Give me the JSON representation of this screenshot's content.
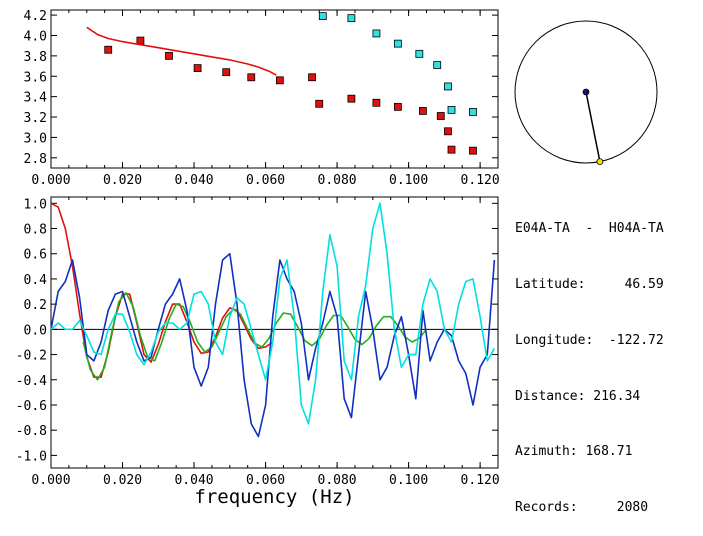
{
  "info": {
    "header": "E04A-TA  -  H04A-TA",
    "latitude": "Latitude:     46.59",
    "longitude": "Longitude:  -122.72",
    "distance": "Distance: 216.34",
    "azimuth": "Azimuth: 168.71",
    "records": "Records:     2080"
  },
  "colors": {
    "red": "#e01010",
    "cyan": "#00e0e0",
    "blue": "#1030c0",
    "green": "#20b020",
    "marker_red": "#e01010",
    "marker_cyan": "#30e0e0",
    "station_center": "#101080",
    "station_edge": "#f0e000"
  },
  "map": {
    "azimuth_deg": 168.71
  },
  "chart_data": [
    {
      "type": "scatter",
      "xlabel": "",
      "ylabel": "",
      "xlim": [
        0.0,
        0.125
      ],
      "ylim": [
        2.7,
        4.25
      ],
      "xticks": [
        "0.000",
        "0.020",
        "0.040",
        "0.060",
        "0.080",
        "0.100",
        "0.120"
      ],
      "yticks": [
        "2.8",
        "3.0",
        "3.2",
        "3.4",
        "3.6",
        "3.8",
        "4.0",
        "4.2"
      ],
      "series": [
        {
          "marker": "red-square",
          "x": [
            0.016,
            0.025,
            0.033,
            0.041,
            0.049,
            0.056,
            0.064,
            0.073,
            0.075,
            0.084,
            0.091,
            0.097,
            0.104,
            0.109,
            0.111,
            0.112,
            0.118
          ],
          "y": [
            3.86,
            3.95,
            3.8,
            3.68,
            3.64,
            3.59,
            3.56,
            3.59,
            3.33,
            3.38,
            3.34,
            3.3,
            3.26,
            3.21,
            3.06,
            2.88,
            2.87
          ]
        },
        {
          "marker": "cyan-square",
          "x": [
            0.076,
            0.084,
            0.091,
            0.097,
            0.103,
            0.108,
            0.111,
            0.112,
            0.118
          ],
          "y": [
            4.19,
            4.17,
            4.02,
            3.92,
            3.82,
            3.71,
            3.5,
            3.27,
            3.25
          ]
        },
        {
          "marker": "red-line",
          "x": [
            0.01,
            0.013,
            0.016,
            0.02,
            0.025,
            0.03,
            0.035,
            0.04,
            0.045,
            0.05,
            0.055,
            0.058,
            0.061,
            0.063
          ],
          "y": [
            4.08,
            4.01,
            3.97,
            3.94,
            3.91,
            3.88,
            3.85,
            3.82,
            3.79,
            3.76,
            3.72,
            3.69,
            3.65,
            3.61
          ]
        }
      ]
    },
    {
      "type": "line",
      "xlabel": "frequency (Hz)",
      "ylabel": "",
      "xlim": [
        0.0,
        0.125
      ],
      "ylim": [
        -1.1,
        1.05
      ],
      "xticks": [
        "0.000",
        "0.020",
        "0.040",
        "0.060",
        "0.080",
        "0.100",
        "0.120"
      ],
      "yticks": [
        "-1.0",
        "-0.8",
        "-0.6",
        "-0.4",
        "-0.2",
        "0.0",
        "0.2",
        "0.4",
        "0.6",
        "0.8",
        "1.0"
      ],
      "series": [
        {
          "color": "red",
          "x": [
            0.0,
            0.002,
            0.004,
            0.006,
            0.008,
            0.01,
            0.012,
            0.014,
            0.016,
            0.018,
            0.02,
            0.022,
            0.024,
            0.026,
            0.028,
            0.03,
            0.032,
            0.034,
            0.036,
            0.038,
            0.04,
            0.042,
            0.044,
            0.046,
            0.048,
            0.05,
            0.052,
            0.054,
            0.056,
            0.058,
            0.06,
            0.062
          ],
          "y": [
            1.0,
            0.97,
            0.8,
            0.5,
            0.12,
            -0.22,
            -0.38,
            -0.38,
            -0.18,
            0.1,
            0.28,
            0.28,
            0.05,
            -0.2,
            -0.26,
            -0.12,
            0.06,
            0.2,
            0.2,
            0.06,
            -0.1,
            -0.19,
            -0.18,
            -0.06,
            0.09,
            0.17,
            0.15,
            0.04,
            -0.08,
            -0.15,
            -0.14,
            -0.1
          ]
        },
        {
          "color": "green",
          "x": [
            0.009,
            0.011,
            0.013,
            0.015,
            0.017,
            0.019,
            0.021,
            0.023,
            0.025,
            0.027,
            0.029,
            0.031,
            0.033,
            0.035,
            0.037,
            0.039,
            0.041,
            0.043,
            0.045,
            0.047,
            0.049,
            0.051,
            0.053,
            0.055,
            0.057,
            0.059,
            0.061,
            0.063,
            0.065,
            0.067,
            0.069,
            0.071,
            0.073,
            0.075,
            0.077,
            0.079,
            0.081,
            0.083,
            0.085,
            0.087,
            0.089,
            0.091,
            0.093,
            0.095,
            0.097,
            0.099,
            0.101,
            0.103,
            0.105
          ],
          "y": [
            -0.1,
            -0.32,
            -0.4,
            -0.3,
            -0.02,
            0.22,
            0.29,
            0.18,
            -0.05,
            -0.22,
            -0.25,
            -0.1,
            0.08,
            0.2,
            0.18,
            0.05,
            -0.1,
            -0.18,
            -0.14,
            -0.02,
            0.1,
            0.16,
            0.12,
            0.0,
            -0.11,
            -0.14,
            -0.07,
            0.05,
            0.13,
            0.12,
            0.02,
            -0.09,
            -0.13,
            -0.08,
            0.03,
            0.11,
            0.11,
            0.02,
            -0.08,
            -0.12,
            -0.07,
            0.03,
            0.1,
            0.1,
            0.03,
            -0.06,
            -0.1,
            -0.07,
            0.0
          ]
        },
        {
          "color": "blue",
          "x": [
            0.0,
            0.002,
            0.004,
            0.006,
            0.008,
            0.01,
            0.012,
            0.014,
            0.016,
            0.018,
            0.02,
            0.022,
            0.024,
            0.026,
            0.028,
            0.03,
            0.032,
            0.034,
            0.036,
            0.038,
            0.04,
            0.042,
            0.044,
            0.046,
            0.048,
            0.05,
            0.052,
            0.054,
            0.056,
            0.058,
            0.06,
            0.062,
            0.064,
            0.066,
            0.068,
            0.07,
            0.072,
            0.074,
            0.076,
            0.078,
            0.08,
            0.082,
            0.084,
            0.086,
            0.088,
            0.09,
            0.092,
            0.094,
            0.096,
            0.098,
            0.1,
            0.102,
            0.104,
            0.106,
            0.108,
            0.11,
            0.112,
            0.114,
            0.116,
            0.118,
            0.12,
            0.122,
            0.124
          ],
          "y": [
            0.0,
            0.3,
            0.38,
            0.55,
            0.25,
            -0.2,
            -0.25,
            -0.1,
            0.15,
            0.28,
            0.3,
            0.1,
            -0.1,
            -0.25,
            -0.22,
            0.0,
            0.2,
            0.28,
            0.4,
            0.15,
            -0.3,
            -0.45,
            -0.3,
            0.2,
            0.55,
            0.6,
            0.2,
            -0.4,
            -0.75,
            -0.85,
            -0.6,
            0.1,
            0.55,
            0.4,
            0.3,
            0.05,
            -0.4,
            -0.15,
            0.05,
            0.3,
            0.1,
            -0.55,
            -0.7,
            -0.2,
            0.3,
            0.0,
            -0.4,
            -0.3,
            -0.05,
            0.1,
            -0.2,
            -0.55,
            0.15,
            -0.25,
            -0.1,
            0.0,
            -0.05,
            -0.25,
            -0.35,
            -0.6,
            -0.3,
            -0.2,
            0.55
          ]
        },
        {
          "color": "cyan",
          "x": [
            0.0,
            0.002,
            0.004,
            0.006,
            0.008,
            0.01,
            0.012,
            0.014,
            0.016,
            0.018,
            0.02,
            0.022,
            0.024,
            0.026,
            0.028,
            0.03,
            0.032,
            0.034,
            0.036,
            0.038,
            0.04,
            0.042,
            0.044,
            0.046,
            0.048,
            0.05,
            0.052,
            0.054,
            0.056,
            0.058,
            0.06,
            0.062,
            0.064,
            0.066,
            0.068,
            0.07,
            0.072,
            0.074,
            0.076,
            0.078,
            0.08,
            0.082,
            0.084,
            0.086,
            0.088,
            0.09,
            0.092,
            0.094,
            0.096,
            0.098,
            0.1,
            0.102,
            0.104,
            0.106,
            0.108,
            0.11,
            0.112,
            0.114,
            0.116,
            0.118,
            0.12,
            0.122,
            0.124
          ],
          "y": [
            0.0,
            0.05,
            0.0,
            0.0,
            0.07,
            -0.05,
            -0.18,
            -0.2,
            0.0,
            0.12,
            0.12,
            -0.02,
            -0.2,
            -0.28,
            -0.18,
            -0.02,
            0.05,
            0.05,
            0.0,
            0.05,
            0.28,
            0.3,
            0.2,
            -0.1,
            -0.2,
            0.1,
            0.25,
            0.2,
            0.0,
            -0.2,
            -0.4,
            -0.1,
            0.4,
            0.55,
            0.1,
            -0.6,
            -0.75,
            -0.4,
            0.3,
            0.75,
            0.5,
            -0.25,
            -0.4,
            0.1,
            0.35,
            0.8,
            1.0,
            0.6,
            0.0,
            -0.3,
            -0.2,
            -0.2,
            0.2,
            0.4,
            0.3,
            0.0,
            -0.1,
            0.2,
            0.38,
            0.4,
            0.1,
            -0.25,
            -0.15
          ]
        }
      ]
    }
  ]
}
